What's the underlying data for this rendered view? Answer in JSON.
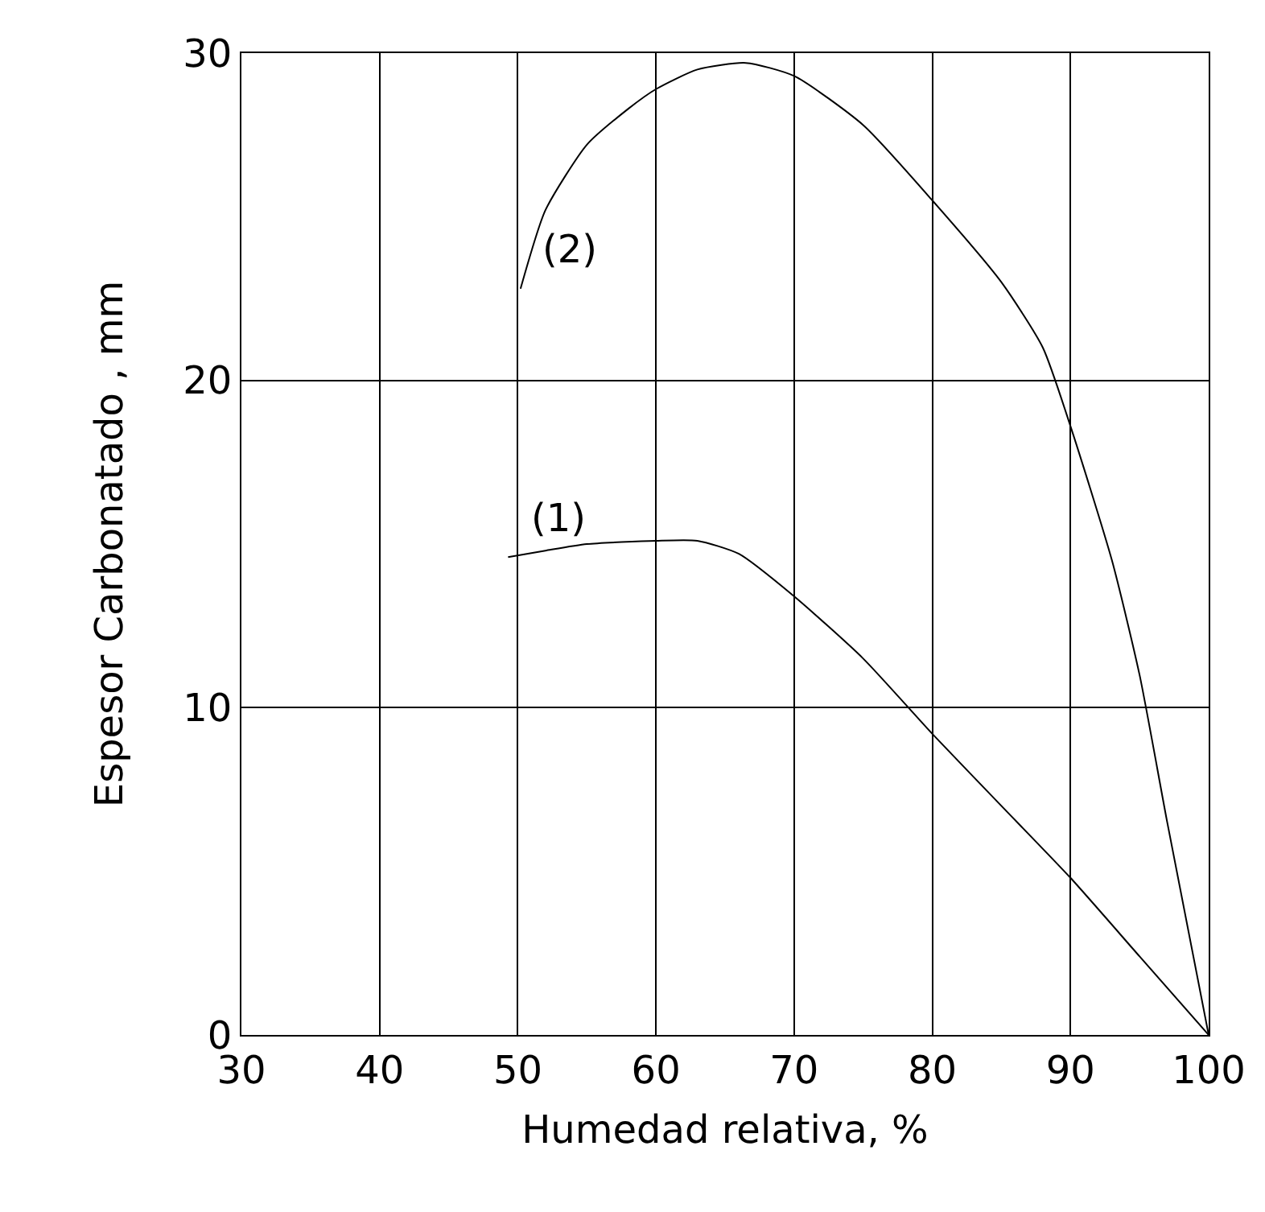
{
  "chart_data": {
    "type": "line",
    "xlabel": "Humedad relativa, %",
    "ylabel": "Espesor Carbonatado , mm",
    "xlim": [
      30,
      100
    ],
    "xticks": [
      30,
      40,
      50,
      60,
      70,
      80,
      90,
      100
    ],
    "ylim": [
      0,
      30
    ],
    "yticks": [
      0,
      10,
      20,
      30
    ],
    "grid": true,
    "legend": false,
    "marker": "none",
    "line_style": "solid",
    "series": [
      {
        "name": "(1)",
        "color": "#000000",
        "x": [
          49.3,
          52,
          55,
          60,
          63,
          66,
          70,
          75,
          80,
          85,
          90,
          95,
          100
        ],
        "values": [
          14.6,
          14.8,
          15.0,
          15.1,
          15.1,
          14.7,
          13.4,
          11.5,
          9.2,
          7.0,
          4.8,
          2.4,
          0
        ]
      },
      {
        "name": "(2)",
        "color": "#000000",
        "x": [
          50.2,
          52,
          55,
          58,
          60,
          63,
          66.5,
          70,
          75,
          80,
          85,
          88,
          90,
          93,
          95,
          97,
          100
        ],
        "values": [
          22.8,
          25.2,
          27.2,
          28.3,
          28.9,
          29.5,
          29.7,
          29.3,
          27.8,
          25.5,
          23.0,
          21.0,
          18.6,
          14.5,
          11.0,
          6.5,
          0
        ]
      }
    ]
  }
}
